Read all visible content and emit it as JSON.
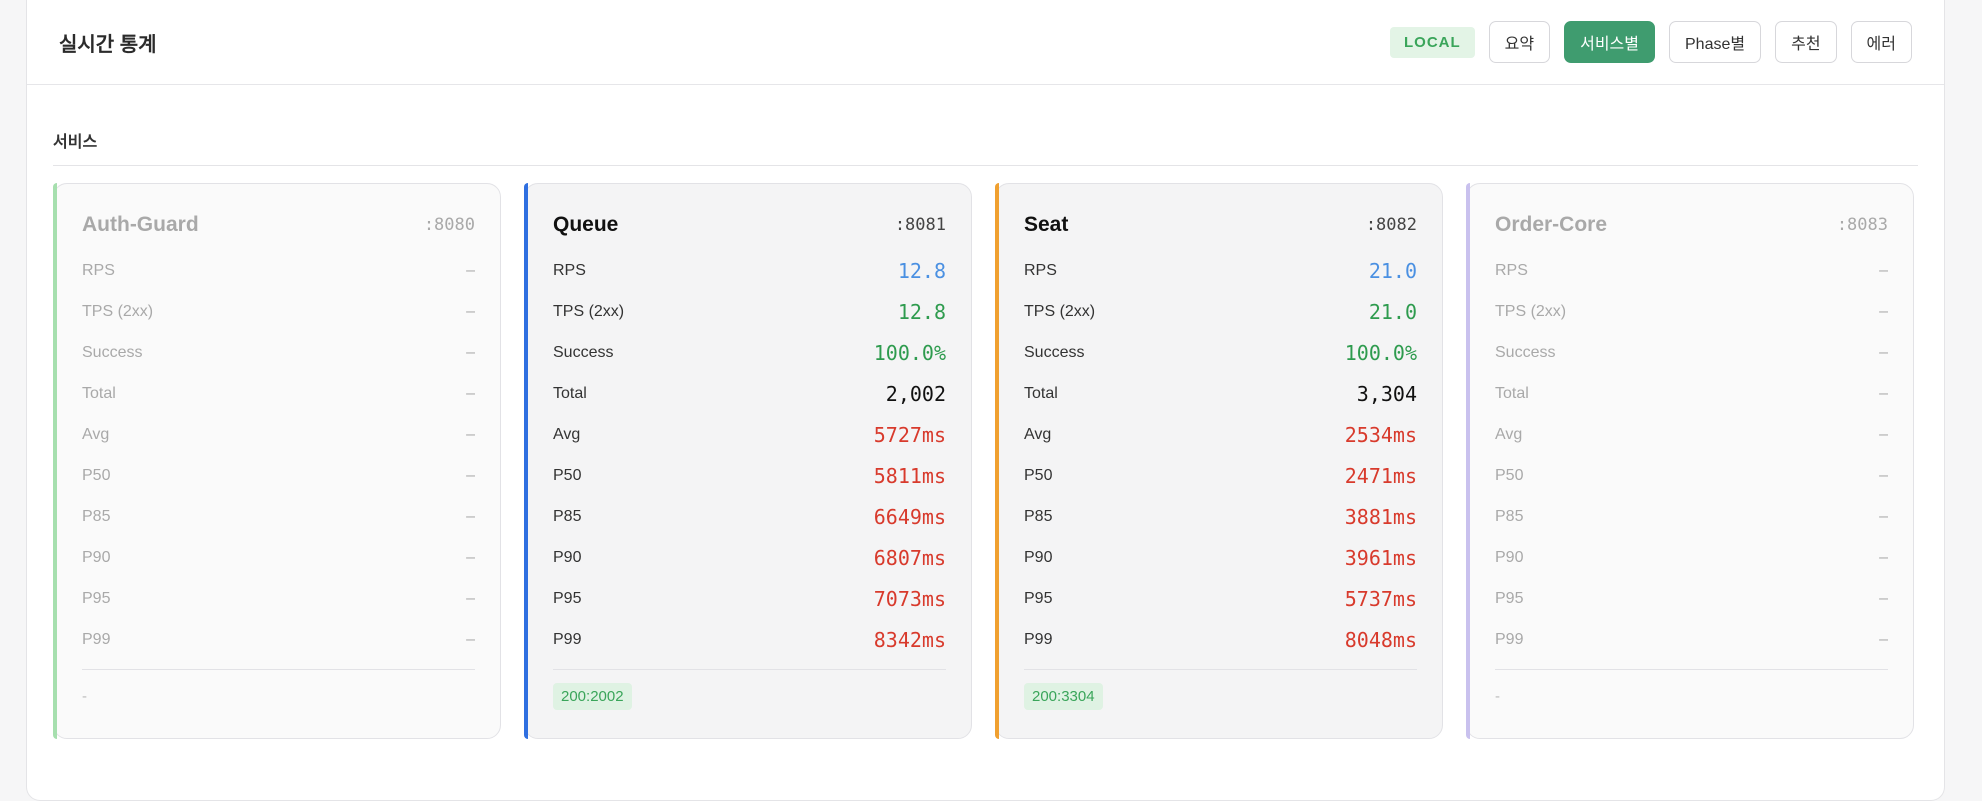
{
  "header": {
    "title": "실시간 통계",
    "env_badge": "LOCAL",
    "tabs": [
      "요약",
      "서비스별",
      "Phase별",
      "추천",
      "에러"
    ]
  },
  "section": {
    "label": "서비스"
  },
  "metric_labels": [
    "RPS",
    "TPS (2xx)",
    "Success",
    "Total",
    "Avg",
    "P50",
    "P85",
    "P90",
    "P95",
    "P99"
  ],
  "services": [
    {
      "name": "Auth-Guard",
      "port": ":8080",
      "accent": "#a6dfae",
      "active": false,
      "values": [
        "–",
        "–",
        "–",
        "–",
        "–",
        "–",
        "–",
        "–",
        "–",
        "–"
      ],
      "status": "-"
    },
    {
      "name": "Queue",
      "port": ":8081",
      "accent": "#2f6fe0",
      "active": true,
      "values": [
        "12.8",
        "12.8",
        "100.0%",
        "2,002",
        "5727ms",
        "5811ms",
        "6649ms",
        "6807ms",
        "7073ms",
        "8342ms"
      ],
      "status": "200:2002"
    },
    {
      "name": "Seat",
      "port": ":8082",
      "accent": "#f0a030",
      "active": true,
      "values": [
        "21.0",
        "21.0",
        "100.0%",
        "3,304",
        "2534ms",
        "2471ms",
        "3881ms",
        "3961ms",
        "5737ms",
        "8048ms"
      ],
      "status": "200:3304"
    },
    {
      "name": "Order-Core",
      "port": ":8083",
      "accent": "#c9c1ee",
      "active": false,
      "values": [
        "–",
        "–",
        "–",
        "–",
        "–",
        "–",
        "–",
        "–",
        "–",
        "–"
      ],
      "status": "-"
    }
  ],
  "colors": {
    "active_tab": "#3f9c6f",
    "rps": "#4a90e2",
    "success": "#2e9b4e",
    "latency": "#d83a2c"
  }
}
